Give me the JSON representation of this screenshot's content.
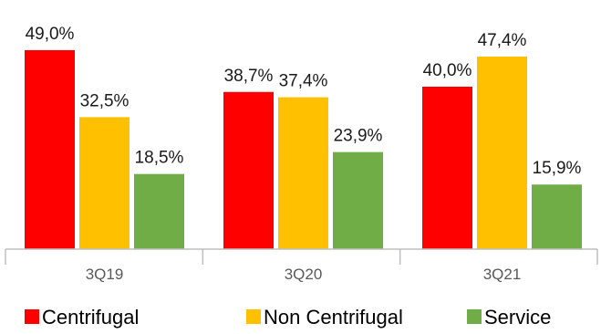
{
  "chart_data": {
    "type": "bar",
    "categories": [
      "3Q19",
      "3Q20",
      "3Q21"
    ],
    "series": [
      {
        "name": "Centrifugal",
        "color": "#ff0000",
        "values": [
          49.0,
          38.7,
          40.0
        ],
        "labels": [
          "49,0%",
          "38,7%",
          "40,0%"
        ]
      },
      {
        "name": "Non Centrifugal",
        "color": "#ffc000",
        "values": [
          32.5,
          37.4,
          47.4
        ],
        "labels": [
          "32,5%",
          "37,4%",
          "47,4%"
        ]
      },
      {
        "name": "Service",
        "color": "#70ad47",
        "values": [
          18.5,
          23.9,
          15.9
        ],
        "labels": [
          "18,5%",
          "23,9%",
          "15,9%"
        ]
      }
    ],
    "ylim": [
      0,
      50
    ],
    "grid": false,
    "axis_color": "#bfbfbf",
    "legend_position": "bottom"
  }
}
